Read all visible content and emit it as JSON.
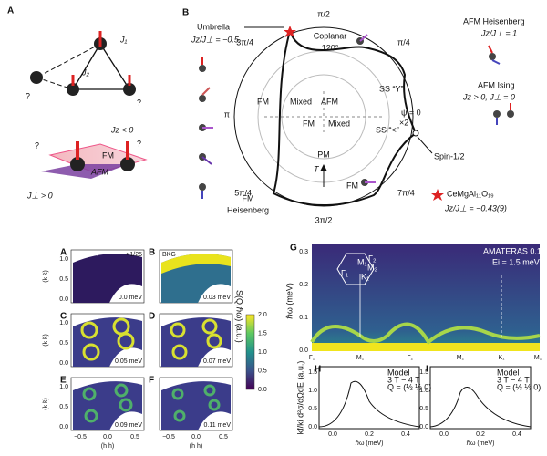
{
  "panel_a": {
    "label": "A",
    "j1": "J₁",
    "j2": "J₂",
    "unknown": "?",
    "jz": "Jz < 0",
    "jperp": "J⊥ > 0",
    "fm": "FM",
    "afm": "AFM"
  },
  "panel_b": {
    "label": "B",
    "angles": [
      "π/2",
      "π/4",
      "ψ = 0",
      "7π/4",
      "3π/2",
      "5π/4",
      "π",
      "3π/4"
    ],
    "umbrella": "Umbrella",
    "umbrella_ratio": "Jz/J⊥ = −0.5",
    "coplanar": "Coplanar",
    "coplanar_angle": "120°",
    "afm_heis": "AFM  Heisenberg",
    "afm_heis_ratio": "Jz/J⊥ = 1",
    "ss_y": "SS “Y”",
    "afm_ising": "AFM Ising",
    "afm_ising_cond": "Jz > 0, J⊥ = 0",
    "ss_lt": "SS “<”",
    "times2": "×2",
    "spin_half": "Spin-1/2",
    "fm_left": "FM",
    "mixed_left": "Mixed",
    "afm_center": "AFM",
    "fm_center": "FM",
    "mixed_right": "Mixed",
    "pm": "PM",
    "t": "T",
    "fm_bottom": "FM",
    "fm_heis_1": "FM",
    "fm_heis_2": "Heisenberg",
    "compound": "CeMgAl₁₁O₁₉",
    "compound_ratio": "Jz/J⊥ = −0.43(9)"
  },
  "maps": {
    "panels": [
      {
        "label": "A",
        "note": "0.1 K 0 T",
        "energy": "0.0 meV",
        "scale": "×1/25"
      },
      {
        "label": "B",
        "note": "BKG",
        "energy": "0.03 meV"
      },
      {
        "label": "C",
        "energy": "0.05 meV"
      },
      {
        "label": "D",
        "energy": "0.07 meV"
      },
      {
        "label": "E",
        "energy": "0.09 meV"
      },
      {
        "label": "F",
        "energy": "0.11 meV"
      }
    ],
    "ylabel": "(k k̄)",
    "xlabel": "(h h)",
    "yticks": [
      "0.0",
      "0.5",
      "1.0"
    ],
    "xticks": [
      "−0.5",
      "0.0",
      "0.5"
    ],
    "colorbar_label": "S(Q,ℏω) (a.u.)",
    "colorbar_ticks": [
      "0.0",
      "0.5",
      "1.0",
      "1.5",
      "2.0"
    ]
  },
  "panel_g": {
    "label": "G",
    "title": "AMATERAS   0.1 K 0 T",
    "subtitle": "Ei = 1.5 meV",
    "ylabel": "ℏω (meV)",
    "yticks": [
      "0.0",
      "0.1",
      "0.2",
      "0.3"
    ],
    "xcats": [
      "Γ₁",
      "M₁",
      "Γ₂",
      "M₂",
      "K₁",
      "M₁"
    ],
    "hex": [
      "Γ₁",
      "M₁",
      "K₁",
      "Γ₂",
      "M₂"
    ]
  },
  "panel_h": {
    "label": "H",
    "legend": [
      "Model",
      "3 T − 4 T",
      "Q = (½ ½ 0)"
    ]
  },
  "panel_i": {
    "label": "I",
    "legend": [
      "Model",
      "3 T − 4 T",
      "Q = (⅓ ⅓ 0)"
    ]
  },
  "small": {
    "ylabel": "kf/ki d²σ/dΩdE (a.u.)",
    "xlabel": "ℏω (meV)",
    "xticks": [
      "0.0",
      "0.2",
      "0.4"
    ],
    "yticks": [
      "0.0",
      "0.5",
      "1.0",
      "1.5"
    ]
  }
}
